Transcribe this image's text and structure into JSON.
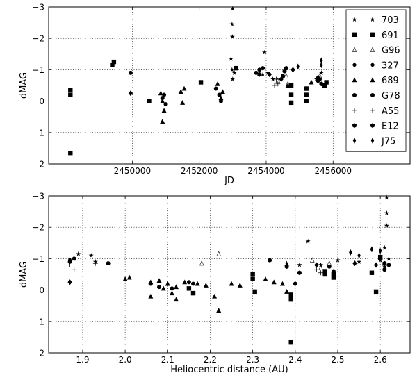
{
  "chart_data": [
    {
      "type": "scatter",
      "xlabel": "JD",
      "ylabel": "dMAG",
      "xlim": [
        2447500,
        2458300
      ],
      "ylim": [
        -3,
        2
      ],
      "y_inverted": true,
      "grid": true,
      "xticks": [
        2450000,
        2452000,
        2454000,
        2456000
      ],
      "xtick_labels": [
        "2450000",
        "2452000",
        "2454000",
        "2456000"
      ],
      "yticks": [
        -3,
        -2,
        -1,
        0,
        1,
        2
      ],
      "ytick_labels": [
        "−3",
        "−2",
        "−1",
        "0",
        "1",
        "2"
      ],
      "legend_position": "right",
      "series": [
        {
          "name": "703",
          "marker": "star",
          "points": [
            [
              2453000,
              -2.95
            ],
            [
              2452980,
              -2.45
            ],
            [
              2452990,
              -2.05
            ],
            [
              2452950,
              -1.35
            ],
            [
              2452980,
              -1.0
            ],
            [
              2453000,
              -0.7
            ],
            [
              2453050,
              -0.9
            ],
            [
              2453950,
              -1.55
            ],
            [
              2453900,
              -0.85
            ],
            [
              2454050,
              -0.9
            ],
            [
              2454200,
              -0.7
            ],
            [
              2455500,
              -0.7
            ],
            [
              2455650,
              -0.9
            ]
          ]
        },
        {
          "name": "691",
          "marker": "square",
          "points": [
            [
              2448150,
              -0.2
            ],
            [
              2448150,
              -0.35
            ],
            [
              2448150,
              1.65
            ],
            [
              2449400,
              -1.15
            ],
            [
              2449450,
              -1.25
            ],
            [
              2450500,
              0.0
            ],
            [
              2452050,
              -0.6
            ],
            [
              2453100,
              -1.05
            ],
            [
              2454750,
              -0.2
            ],
            [
              2454750,
              0.05
            ],
            [
              2454750,
              -0.5
            ],
            [
              2455200,
              -0.2
            ],
            [
              2455200,
              0.0
            ],
            [
              2455200,
              -0.4
            ],
            [
              2455750,
              -0.5
            ],
            [
              2455800,
              -0.6
            ]
          ]
        },
        {
          "name": "G96",
          "marker": "tri-thin",
          "points": [
            [
              2454350,
              -0.65
            ],
            [
              2454600,
              -0.8
            ],
            [
              2454650,
              -0.55
            ],
            [
              2455600,
              -0.8
            ]
          ]
        },
        {
          "name": "327",
          "marker": "diamond",
          "points": [
            [
              2449950,
              -0.25
            ],
            [
              2454100,
              -0.85
            ],
            [
              2454450,
              -0.7
            ],
            [
              2454800,
              -1.0
            ],
            [
              2455550,
              -0.75
            ]
          ]
        },
        {
          "name": "689",
          "marker": "triangle",
          "points": [
            [
              2450850,
              -0.25
            ],
            [
              2450900,
              0.0
            ],
            [
              2450950,
              0.3
            ],
            [
              2450900,
              0.65
            ],
            [
              2451450,
              -0.3
            ],
            [
              2451550,
              -0.4
            ],
            [
              2451500,
              0.05
            ],
            [
              2452550,
              -0.55
            ],
            [
              2452700,
              -0.3
            ],
            [
              2452650,
              -0.1
            ],
            [
              2454650,
              -0.5
            ],
            [
              2455350,
              -0.6
            ]
          ]
        },
        {
          "name": "G78",
          "marker": "circle",
          "points": [
            [
              2449950,
              -0.9
            ],
            [
              2450900,
              -0.1
            ],
            [
              2450950,
              -0.2
            ],
            [
              2451000,
              0.1
            ],
            [
              2452500,
              -0.4
            ],
            [
              2452600,
              -0.2
            ],
            [
              2452650,
              0.0
            ],
            [
              2453700,
              -0.9
            ],
            [
              2453800,
              -1.0
            ],
            [
              2454500,
              -0.8
            ],
            [
              2454550,
              -0.95
            ],
            [
              2455550,
              -0.65
            ],
            [
              2455600,
              -0.7
            ]
          ]
        },
        {
          "name": "A55",
          "marker": "plus",
          "points": [
            [
              2454250,
              -0.5
            ],
            [
              2454300,
              -0.7
            ],
            [
              2454350,
              -0.55
            ]
          ]
        },
        {
          "name": "E12",
          "marker": "hexagon",
          "points": [
            [
              2453800,
              -0.85
            ],
            [
              2453900,
              -1.05
            ],
            [
              2454600,
              -1.05
            ],
            [
              2455650,
              -0.55
            ]
          ]
        },
        {
          "name": "J75",
          "marker": "thin-diamond",
          "points": [
            [
              2454950,
              -1.1
            ],
            [
              2455650,
              -1.15
            ],
            [
              2455650,
              -1.3
            ]
          ]
        }
      ]
    },
    {
      "type": "scatter",
      "xlabel": "Heliocentric distance (AU)",
      "ylabel": "dMAG",
      "xlim": [
        1.82,
        2.67
      ],
      "ylim": [
        -3,
        2
      ],
      "y_inverted": true,
      "grid": true,
      "xticks": [
        1.9,
        2.0,
        2.1,
        2.2,
        2.3,
        2.4,
        2.5,
        2.6
      ],
      "xtick_labels": [
        "1.9",
        "2.0",
        "2.1",
        "2.2",
        "2.3",
        "2.4",
        "2.5",
        "2.6"
      ],
      "yticks": [
        -3,
        -2,
        -1,
        0,
        1,
        2
      ],
      "ytick_labels": [
        "−3",
        "−2",
        "−1",
        "0",
        "1",
        "2"
      ],
      "series": [
        {
          "name": "703",
          "marker": "star",
          "points": [
            [
              1.88,
              -1.0
            ],
            [
              1.89,
              -1.15
            ],
            [
              1.92,
              -1.1
            ],
            [
              1.93,
              -0.9
            ],
            [
              2.43,
              -1.55
            ],
            [
              2.38,
              -0.85
            ],
            [
              2.41,
              -0.8
            ],
            [
              2.46,
              -0.8
            ],
            [
              2.5,
              -0.95
            ],
            [
              2.55,
              -0.9
            ],
            [
              2.6,
              -0.95
            ],
            [
              2.615,
              -2.95
            ],
            [
              2.615,
              -2.45
            ],
            [
              2.615,
              -2.05
            ],
            [
              2.61,
              -1.35
            ],
            [
              2.62,
              -1.0
            ],
            [
              2.61,
              -0.75
            ]
          ]
        },
        {
          "name": "691",
          "marker": "square",
          "points": [
            [
              2.3,
              -0.35
            ],
            [
              2.3,
              -0.5
            ],
            [
              2.305,
              0.05
            ],
            [
              2.39,
              0.15
            ],
            [
              2.39,
              0.3
            ],
            [
              2.39,
              1.65
            ],
            [
              2.16,
              0.1
            ],
            [
              2.15,
              -0.05
            ],
            [
              2.47,
              -0.5
            ],
            [
              2.47,
              -0.6
            ],
            [
              2.49,
              -0.4
            ],
            [
              2.49,
              -0.5
            ],
            [
              2.58,
              -0.55
            ],
            [
              2.6,
              -1.05
            ],
            [
              2.59,
              0.05
            ]
          ]
        },
        {
          "name": "G96",
          "marker": "tri-thin",
          "points": [
            [
              2.18,
              -0.85
            ],
            [
              2.22,
              -1.15
            ],
            [
              2.44,
              -0.95
            ],
            [
              2.46,
              -0.7
            ],
            [
              2.48,
              -0.85
            ]
          ]
        },
        {
          "name": "327",
          "marker": "diamond",
          "points": [
            [
              1.87,
              -0.25
            ],
            [
              1.87,
              -0.95
            ],
            [
              2.45,
              -0.8
            ],
            [
              2.54,
              -0.85
            ],
            [
              2.59,
              -0.8
            ]
          ]
        },
        {
          "name": "689",
          "marker": "triangle",
          "points": [
            [
              2.0,
              -0.35
            ],
            [
              2.01,
              -0.4
            ],
            [
              2.06,
              -0.25
            ],
            [
              2.08,
              -0.3
            ],
            [
              2.09,
              -0.05
            ],
            [
              2.1,
              -0.2
            ],
            [
              2.11,
              0.1
            ],
            [
              2.12,
              -0.1
            ],
            [
              2.14,
              -0.25
            ],
            [
              2.17,
              -0.2
            ],
            [
              2.19,
              -0.15
            ],
            [
              2.21,
              0.2
            ],
            [
              2.22,
              0.65
            ],
            [
              2.25,
              -0.2
            ],
            [
              2.27,
              -0.15
            ],
            [
              2.33,
              -0.35
            ],
            [
              2.35,
              -0.25
            ],
            [
              2.37,
              -0.2
            ],
            [
              2.06,
              0.2
            ],
            [
              2.12,
              0.3
            ],
            [
              2.38,
              0.05
            ]
          ]
        },
        {
          "name": "G78",
          "marker": "circle",
          "points": [
            [
              1.87,
              -0.9
            ],
            [
              1.88,
              -1.0
            ],
            [
              1.96,
              -0.85
            ],
            [
              2.06,
              -0.2
            ],
            [
              2.08,
              -0.1
            ],
            [
              2.11,
              -0.05
            ],
            [
              2.15,
              -0.25
            ],
            [
              2.16,
              -0.2
            ],
            [
              2.34,
              -0.95
            ],
            [
              2.4,
              -0.2
            ],
            [
              2.48,
              -0.75
            ],
            [
              2.49,
              -0.6
            ],
            [
              2.61,
              -0.65
            ],
            [
              2.62,
              -0.8
            ]
          ]
        },
        {
          "name": "A55",
          "marker": "plus",
          "points": [
            [
              1.87,
              -0.8
            ],
            [
              1.88,
              -0.65
            ],
            [
              1.93,
              -0.85
            ],
            [
              2.45,
              -0.65
            ],
            [
              2.46,
              -0.55
            ]
          ]
        },
        {
          "name": "E12",
          "marker": "hexagon",
          "points": [
            [
              2.38,
              -0.75
            ],
            [
              2.41,
              -0.55
            ],
            [
              2.6,
              -1.0
            ],
            [
              2.61,
              -0.85
            ]
          ]
        },
        {
          "name": "J75",
          "marker": "thin-diamond",
          "points": [
            [
              2.55,
              -1.1
            ],
            [
              2.53,
              -1.2
            ],
            [
              2.58,
              -1.3
            ],
            [
              2.6,
              -1.25
            ]
          ]
        }
      ]
    }
  ]
}
